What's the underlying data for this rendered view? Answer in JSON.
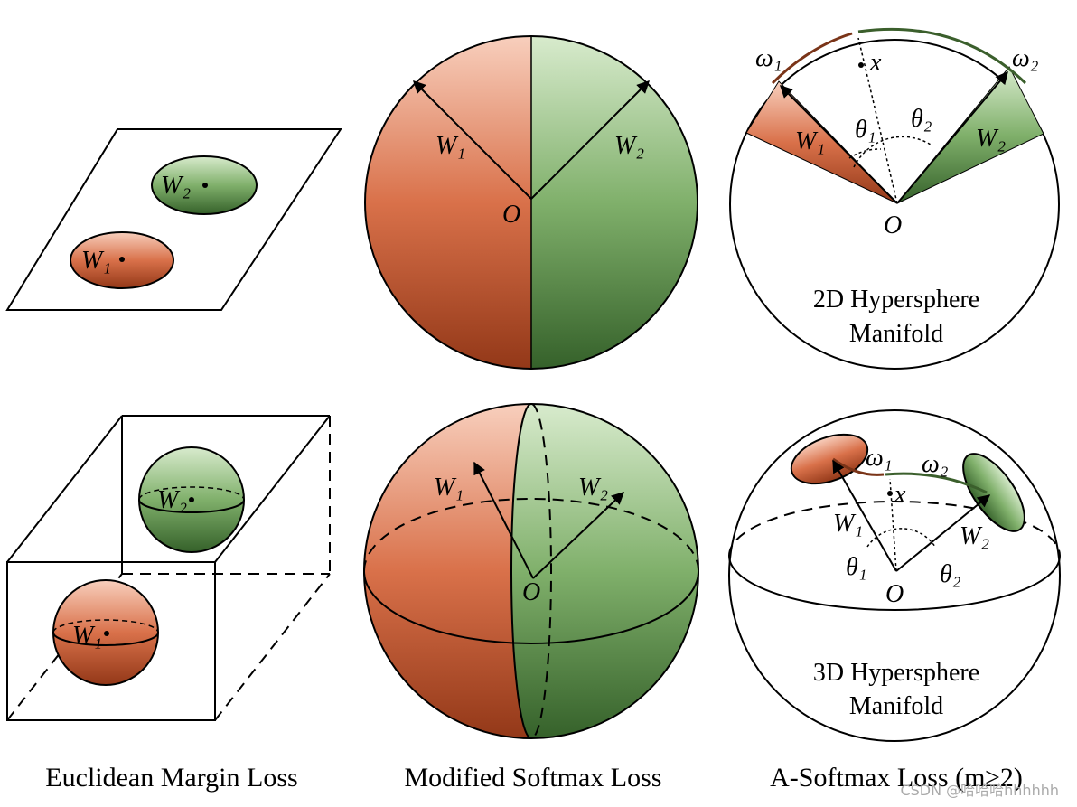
{
  "panels": [
    {
      "caption": "Euclidean Margin Loss",
      "top_labels": [
        "W₂",
        "W₁"
      ],
      "bottom_labels": [
        "W₂",
        "W₁"
      ]
    },
    {
      "caption": "Modified Softmax Loss",
      "top_labels": [
        "W₁",
        "W₂",
        "O"
      ],
      "bottom_labels": [
        "W₁",
        "W₂",
        "O"
      ]
    },
    {
      "caption": "A-Softmax Loss (m≥2)",
      "top_labels": [
        "ω₁",
        "ω₂",
        "x",
        "θ₁",
        "θ₂",
        "W₁",
        "W₂",
        "O"
      ],
      "top_title": [
        "2D Hypersphere",
        "Manifold"
      ],
      "bottom_labels": [
        "ω₁",
        "ω₂",
        "x",
        "W₁",
        "W₂",
        "θ₁",
        "θ₂",
        "O"
      ],
      "bottom_title": [
        "3D Hypersphere",
        "Manifold"
      ]
    }
  ],
  "watermark": "CSDN @哈哈哈hhhhhh"
}
